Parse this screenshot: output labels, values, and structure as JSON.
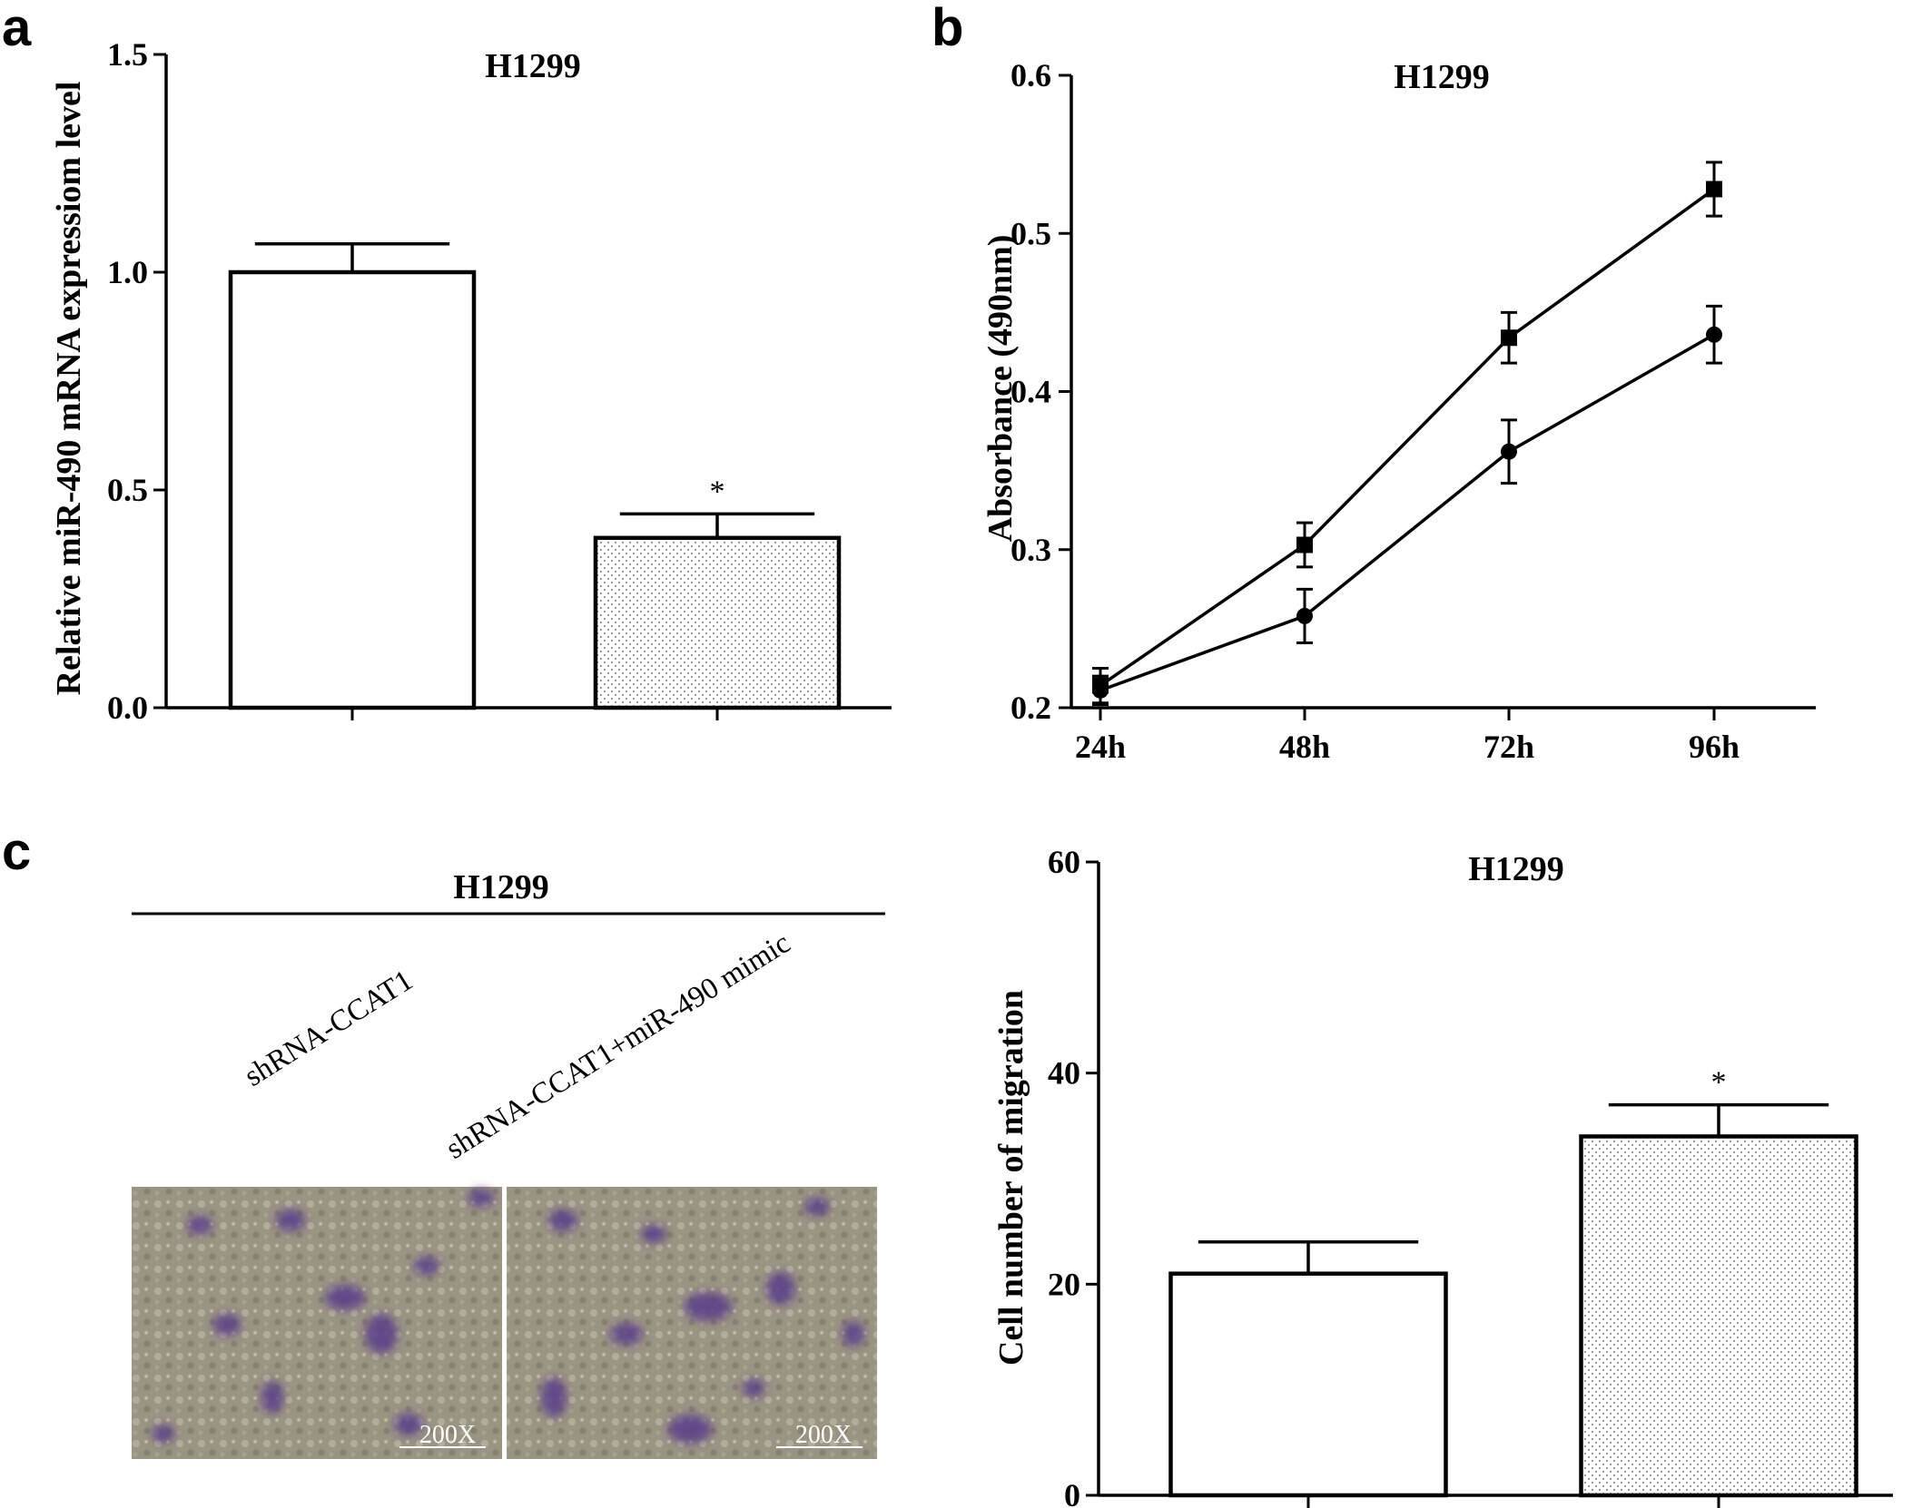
{
  "panels": {
    "a": "a",
    "b": "b",
    "c": "c"
  },
  "chart_data": [
    {
      "id": "a",
      "type": "bar",
      "title": "H1299",
      "ylabel": "Relative miR-490 mRNA expressiom level",
      "ylim": [
        0,
        1.5
      ],
      "yticks": [
        "0.0",
        "0.5",
        "1.0",
        "1.5"
      ],
      "yticks_values": [
        0,
        0.5,
        1.0,
        1.5
      ],
      "categories": [
        "",
        ""
      ],
      "values": [
        1.0,
        0.39
      ],
      "errors": [
        0.065,
        0.055
      ],
      "fills": [
        "white",
        "dotted"
      ],
      "annotations": [
        "",
        "*"
      ],
      "grid": false
    },
    {
      "id": "b",
      "type": "line",
      "title": "H1299",
      "ylabel": "Absorbance (490nm)",
      "ylim": [
        0.2,
        0.6
      ],
      "yticks": [
        "0.2",
        "0.3",
        "0.4",
        "0.5",
        "0.6"
      ],
      "yticks_values": [
        0.2,
        0.3,
        0.4,
        0.5,
        0.6
      ],
      "x": [
        "24h",
        "48h",
        "72h",
        "96h"
      ],
      "series": [
        {
          "marker": "square",
          "values": [
            0.214,
            0.303,
            0.434,
            0.528
          ],
          "errors": [
            0.011,
            0.014,
            0.016,
            0.017
          ]
        },
        {
          "marker": "circle",
          "values": [
            0.211,
            0.258,
            0.362,
            0.436
          ],
          "errors": [
            0.009,
            0.017,
            0.02,
            0.018
          ]
        }
      ],
      "grid": false
    },
    {
      "id": "c",
      "type": "bar",
      "title": "H1299",
      "ylabel": "Cell number of migration",
      "ylim": [
        0,
        60
      ],
      "yticks": [
        "0",
        "20",
        "40",
        "60"
      ],
      "yticks_values": [
        0,
        20,
        40,
        60
      ],
      "categories": [
        "",
        ""
      ],
      "values": [
        21,
        34
      ],
      "errors": [
        3,
        3
      ],
      "fills": [
        "white",
        "dotted"
      ],
      "annotations": [
        "",
        "*"
      ],
      "grid": false
    }
  ],
  "micrograph": {
    "header": "H1299",
    "labels": [
      "shRNA-CCAT1",
      "shRNA-CCAT1+miR-490 mimic"
    ],
    "scale": [
      "200X",
      "200X"
    ],
    "stain_color": "#5a3d8a",
    "background_color": "#9a9483"
  }
}
